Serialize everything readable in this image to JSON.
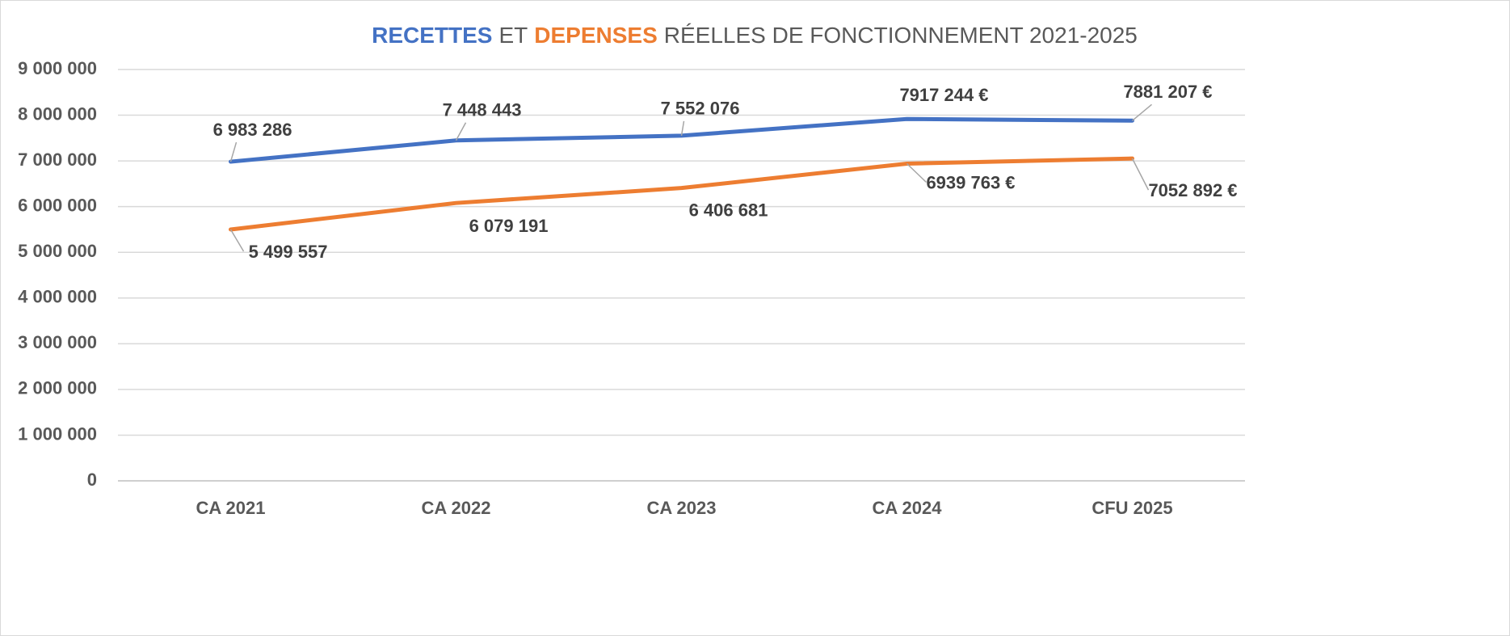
{
  "chart_data": {
    "type": "line",
    "title": [
      {
        "text": "RECETTES",
        "color": "#4472c4"
      },
      {
        "text": "ET",
        "color": "#595959"
      },
      {
        "text": "DEPENSES",
        "color": "#ed7d31"
      },
      {
        "text": "RÉELLES DE FONCTIONNEMENT 2021-2025",
        "color": "#595959"
      }
    ],
    "categories": [
      "CA 2021",
      "CA 2022",
      "CA 2023",
      "CA 2024",
      "CFU 2025"
    ],
    "series": [
      {
        "color": "#4472c4",
        "values": [
          6983286,
          7448443,
          7552076,
          7917244,
          7881207
        ],
        "value_labels": [
          "6 983 286",
          "7 448 443",
          "7 552 076",
          "7917 244 €",
          "7881 207 €"
        ]
      },
      {
        "color": "#ed7d31",
        "values": [
          5499557,
          6079191,
          6406681,
          6939763,
          7052892
        ],
        "value_labels": [
          "5 499 557",
          "6 079 191",
          "6 406 681",
          "6939 763 €",
          "7052 892 €"
        ]
      }
    ],
    "ylim": [
      0,
      9000000
    ],
    "yticks": [
      {
        "value": 0,
        "label": "0"
      },
      {
        "value": 1000000,
        "label": "1 000 000"
      },
      {
        "value": 2000000,
        "label": "2 000 000"
      },
      {
        "value": 3000000,
        "label": "3 000 000"
      },
      {
        "value": 4000000,
        "label": "4 000 000"
      },
      {
        "value": 5000000,
        "label": "5 000 000"
      },
      {
        "value": 6000000,
        "label": "6 000 000"
      },
      {
        "value": 7000000,
        "label": "7 000 000"
      },
      {
        "value": 8000000,
        "label": "8 000 000"
      },
      {
        "value": 9000000,
        "label": "9 000 000"
      }
    ],
    "grid": true
  }
}
